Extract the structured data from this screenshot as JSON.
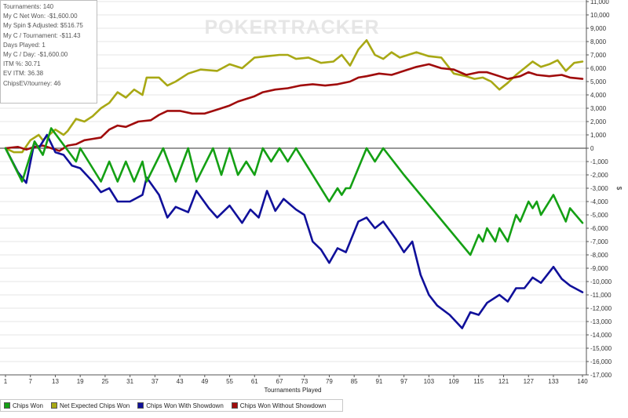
{
  "stats": [
    {
      "label": "Tournaments",
      "value": "140"
    },
    {
      "label": "My C Net Won",
      "value": "-$1,600.00"
    },
    {
      "label": "My Spin $ Adjusted",
      "value": "$516.75"
    },
    {
      "label": "My C / Tournament",
      "value": "-$11.43"
    },
    {
      "label": "Days Played",
      "value": "1"
    },
    {
      "label": "My C / Day",
      "value": "-$1,600.00"
    },
    {
      "label": "ITM %",
      "value": "30.71"
    },
    {
      "label": "EV ITM",
      "value": "36.38"
    },
    {
      "label": "ChipsEV/tourney",
      "value": "46"
    }
  ],
  "watermark": "POKERTRACKER",
  "chart_data": {
    "type": "line",
    "xlabel": "Tournaments Played",
    "ylabel": "$",
    "xlim": [
      1,
      140
    ],
    "ylim": [
      -17000,
      11000
    ],
    "x_ticks": [
      1,
      7,
      13,
      19,
      25,
      31,
      37,
      43,
      49,
      55,
      61,
      67,
      73,
      79,
      85,
      91,
      97,
      103,
      109,
      115,
      121,
      127,
      133,
      140
    ],
    "y_ticks": [
      11000,
      10000,
      9000,
      8000,
      7000,
      6000,
      5000,
      4000,
      3000,
      2000,
      1000,
      0,
      -1000,
      -2000,
      -3000,
      -4000,
      -5000,
      -6000,
      -7000,
      -8000,
      -9000,
      -10000,
      -11000,
      -12000,
      -13000,
      -14000,
      -15000,
      -16000,
      -17000
    ],
    "y_tick_labels": [
      "11,000",
      "10,000",
      "9,000",
      "8,000",
      "7,000",
      "6,000",
      "5,000",
      "4,000",
      "3,000",
      "2,000",
      "1,000",
      "0",
      "-1,000",
      "-2,000",
      "-3,000",
      "-4,000",
      "-5,000",
      "-6,000",
      "-7,000",
      "-8,000",
      "-9,000",
      "-10,000",
      "-11,000",
      "-12,000",
      "-13,000",
      "-14,000",
      "-15,000",
      "-16,000",
      "-17,000"
    ],
    "grid": "horizontal",
    "legend_position": "bottom-left",
    "series": [
      {
        "name": "Chips Won",
        "color": "#14a014",
        "points": [
          [
            1,
            0
          ],
          [
            5,
            -2500
          ],
          [
            8,
            500
          ],
          [
            10,
            -500
          ],
          [
            12,
            1500
          ],
          [
            18,
            -1000
          ],
          [
            19,
            0
          ],
          [
            24,
            -2500
          ],
          [
            26,
            -1000
          ],
          [
            28,
            -2500
          ],
          [
            30,
            -1000
          ],
          [
            32,
            -2500
          ],
          [
            34,
            -1000
          ],
          [
            35,
            -2500
          ],
          [
            39,
            0
          ],
          [
            42,
            -2500
          ],
          [
            45,
            0
          ],
          [
            47,
            -2500
          ],
          [
            51,
            0
          ],
          [
            53,
            -2000
          ],
          [
            55,
            0
          ],
          [
            57,
            -2000
          ],
          [
            59,
            -1000
          ],
          [
            61,
            -2000
          ],
          [
            63,
            0
          ],
          [
            65,
            -1000
          ],
          [
            67,
            0
          ],
          [
            69,
            -1000
          ],
          [
            71,
            0
          ],
          [
            74,
            -1500
          ],
          [
            79,
            -4000
          ],
          [
            81,
            -3000
          ],
          [
            82,
            -3500
          ],
          [
            83,
            -3000
          ],
          [
            84,
            -3000
          ],
          [
            88,
            0
          ],
          [
            90,
            -1000
          ],
          [
            92,
            0
          ],
          [
            97,
            -2000
          ],
          [
            113,
            -8000
          ],
          [
            115,
            -6500
          ],
          [
            116,
            -7000
          ],
          [
            117,
            -6000
          ],
          [
            119,
            -7000
          ],
          [
            120,
            -6000
          ],
          [
            122,
            -7000
          ],
          [
            124,
            -5000
          ],
          [
            125,
            -5500
          ],
          [
            127,
            -4000
          ],
          [
            128,
            -4500
          ],
          [
            129,
            -4000
          ],
          [
            130,
            -5000
          ],
          [
            133,
            -3500
          ],
          [
            136,
            -5500
          ],
          [
            137,
            -4500
          ],
          [
            140,
            -5600
          ]
        ]
      },
      {
        "name": "Net Expected Chips Won",
        "color": "#a8a814",
        "points": [
          [
            1,
            0
          ],
          [
            3,
            -300
          ],
          [
            5,
            -300
          ],
          [
            7,
            600
          ],
          [
            9,
            1000
          ],
          [
            10,
            600
          ],
          [
            13,
            1400
          ],
          [
            15,
            1000
          ],
          [
            16,
            1300
          ],
          [
            18,
            2200
          ],
          [
            20,
            2000
          ],
          [
            22,
            2400
          ],
          [
            24,
            3000
          ],
          [
            26,
            3400
          ],
          [
            28,
            4200
          ],
          [
            30,
            3800
          ],
          [
            32,
            4400
          ],
          [
            34,
            4000
          ],
          [
            35,
            5300
          ],
          [
            38,
            5300
          ],
          [
            40,
            4700
          ],
          [
            42,
            5000
          ],
          [
            45,
            5600
          ],
          [
            48,
            5900
          ],
          [
            52,
            5800
          ],
          [
            55,
            6300
          ],
          [
            58,
            6000
          ],
          [
            61,
            6800
          ],
          [
            64,
            6900
          ],
          [
            67,
            7000
          ],
          [
            69,
            7000
          ],
          [
            71,
            6700
          ],
          [
            74,
            6800
          ],
          [
            77,
            6400
          ],
          [
            80,
            6500
          ],
          [
            82,
            7000
          ],
          [
            84,
            6200
          ],
          [
            86,
            7400
          ],
          [
            88,
            8100
          ],
          [
            90,
            7000
          ],
          [
            92,
            6700
          ],
          [
            94,
            7200
          ],
          [
            96,
            6800
          ],
          [
            98,
            7000
          ],
          [
            100,
            7200
          ],
          [
            103,
            6900
          ],
          [
            106,
            6800
          ],
          [
            109,
            5600
          ],
          [
            112,
            5400
          ],
          [
            114,
            5200
          ],
          [
            116,
            5300
          ],
          [
            118,
            5000
          ],
          [
            120,
            4400
          ],
          [
            122,
            4900
          ],
          [
            124,
            5500
          ],
          [
            126,
            6000
          ],
          [
            128,
            6500
          ],
          [
            130,
            6100
          ],
          [
            132,
            6300
          ],
          [
            134,
            6600
          ],
          [
            136,
            5800
          ],
          [
            138,
            6400
          ],
          [
            140,
            6500
          ]
        ]
      },
      {
        "name": "Chips Won With Showdown",
        "color": "#10109a",
        "points": [
          [
            1,
            0
          ],
          [
            4,
            -1800
          ],
          [
            6,
            -2600
          ],
          [
            8,
            500
          ],
          [
            9,
            0
          ],
          [
            11,
            1000
          ],
          [
            13,
            -300
          ],
          [
            15,
            -500
          ],
          [
            17,
            -1300
          ],
          [
            19,
            -1500
          ],
          [
            22,
            -2500
          ],
          [
            24,
            -3300
          ],
          [
            26,
            -3000
          ],
          [
            28,
            -4000
          ],
          [
            31,
            -4000
          ],
          [
            34,
            -3500
          ],
          [
            35,
            -2200
          ],
          [
            38,
            -3500
          ],
          [
            40,
            -5200
          ],
          [
            42,
            -4400
          ],
          [
            45,
            -4800
          ],
          [
            47,
            -3200
          ],
          [
            50,
            -4500
          ],
          [
            52,
            -5200
          ],
          [
            55,
            -4300
          ],
          [
            58,
            -5600
          ],
          [
            60,
            -4600
          ],
          [
            62,
            -5200
          ],
          [
            64,
            -3200
          ],
          [
            66,
            -4700
          ],
          [
            68,
            -3800
          ],
          [
            71,
            -4600
          ],
          [
            73,
            -5000
          ],
          [
            75,
            -7000
          ],
          [
            77,
            -7600
          ],
          [
            79,
            -8600
          ],
          [
            81,
            -7500
          ],
          [
            83,
            -7800
          ],
          [
            86,
            -5500
          ],
          [
            88,
            -5200
          ],
          [
            90,
            -6000
          ],
          [
            92,
            -5500
          ],
          [
            95,
            -6800
          ],
          [
            97,
            -7800
          ],
          [
            99,
            -7000
          ],
          [
            101,
            -9500
          ],
          [
            103,
            -11000
          ],
          [
            105,
            -11800
          ],
          [
            108,
            -12500
          ],
          [
            111,
            -13500
          ],
          [
            113,
            -12300
          ],
          [
            115,
            -12500
          ],
          [
            117,
            -11600
          ],
          [
            120,
            -11000
          ],
          [
            122,
            -11500
          ],
          [
            124,
            -10500
          ],
          [
            126,
            -10500
          ],
          [
            128,
            -9700
          ],
          [
            130,
            -10100
          ],
          [
            133,
            -8900
          ],
          [
            135,
            -9800
          ],
          [
            137,
            -10300
          ],
          [
            140,
            -10800
          ]
        ]
      },
      {
        "name": "Chips Won Without Showdown",
        "color": "#a00c0c",
        "points": [
          [
            1,
            0
          ],
          [
            4,
            100
          ],
          [
            6,
            -100
          ],
          [
            8,
            100
          ],
          [
            10,
            200
          ],
          [
            12,
            0
          ],
          [
            14,
            -200
          ],
          [
            16,
            200
          ],
          [
            18,
            300
          ],
          [
            20,
            600
          ],
          [
            22,
            700
          ],
          [
            24,
            800
          ],
          [
            26,
            1400
          ],
          [
            28,
            1700
          ],
          [
            30,
            1600
          ],
          [
            33,
            2000
          ],
          [
            36,
            2100
          ],
          [
            38,
            2500
          ],
          [
            40,
            2800
          ],
          [
            43,
            2800
          ],
          [
            46,
            2600
          ],
          [
            49,
            2600
          ],
          [
            52,
            2900
          ],
          [
            55,
            3200
          ],
          [
            57,
            3500
          ],
          [
            59,
            3700
          ],
          [
            61,
            3900
          ],
          [
            63,
            4200
          ],
          [
            66,
            4400
          ],
          [
            69,
            4500
          ],
          [
            72,
            4700
          ],
          [
            75,
            4800
          ],
          [
            78,
            4700
          ],
          [
            81,
            4800
          ],
          [
            84,
            5000
          ],
          [
            86,
            5300
          ],
          [
            88,
            5400
          ],
          [
            91,
            5600
          ],
          [
            94,
            5500
          ],
          [
            97,
            5800
          ],
          [
            100,
            6100
          ],
          [
            103,
            6300
          ],
          [
            106,
            6000
          ],
          [
            109,
            5900
          ],
          [
            112,
            5500
          ],
          [
            115,
            5700
          ],
          [
            117,
            5700
          ],
          [
            120,
            5400
          ],
          [
            122,
            5200
          ],
          [
            125,
            5400
          ],
          [
            127,
            5700
          ],
          [
            129,
            5500
          ],
          [
            132,
            5400
          ],
          [
            135,
            5500
          ],
          [
            137,
            5300
          ],
          [
            140,
            5200
          ]
        ]
      }
    ]
  }
}
